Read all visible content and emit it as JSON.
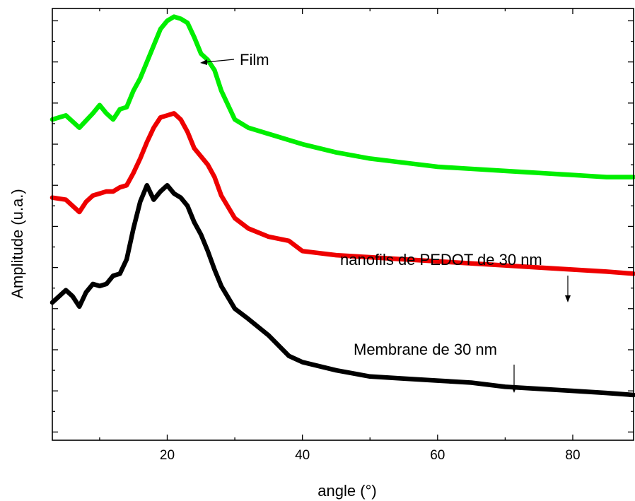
{
  "chart_data": {
    "type": "line",
    "xlabel": "angle (°)",
    "ylabel": "Amplitude (u.a.)",
    "xlim": [
      3,
      89
    ],
    "ylim": [
      -0.2,
      10.3
    ],
    "xticks": [
      20,
      40,
      60,
      80
    ],
    "yticks_labeled": false,
    "grid": false,
    "legend": "none",
    "series": [
      {
        "color": "#00ee00",
        "x": [
          3,
          5,
          7,
          9,
          10,
          11,
          12,
          13,
          14,
          15,
          16,
          17,
          18,
          19,
          20,
          21,
          22,
          23,
          24,
          25,
          26,
          27,
          28,
          30,
          32,
          35,
          40,
          45,
          50,
          55,
          60,
          65,
          70,
          75,
          80,
          85,
          89
        ],
        "y": [
          7.6,
          7.7,
          7.4,
          7.75,
          7.95,
          7.75,
          7.6,
          7.85,
          7.9,
          8.3,
          8.6,
          9.0,
          9.4,
          9.8,
          10.0,
          10.1,
          10.05,
          9.95,
          9.6,
          9.2,
          9.05,
          8.8,
          8.3,
          7.6,
          7.4,
          7.25,
          7.0,
          6.8,
          6.65,
          6.55,
          6.45,
          6.4,
          6.35,
          6.3,
          6.25,
          6.2,
          6.2
        ]
      },
      {
        "color": "#ee0000",
        "x": [
          3,
          5,
          7,
          8,
          9,
          10,
          11,
          12,
          13,
          14,
          15,
          16,
          17,
          18,
          19,
          20,
          21,
          22,
          23,
          24,
          25,
          26,
          27,
          28,
          30,
          32,
          35,
          38,
          40,
          45,
          50,
          55,
          60,
          65,
          70,
          75,
          80,
          85,
          89
        ],
        "y": [
          5.7,
          5.65,
          5.35,
          5.6,
          5.75,
          5.8,
          5.85,
          5.85,
          5.95,
          6.0,
          6.3,
          6.65,
          7.05,
          7.4,
          7.65,
          7.7,
          7.75,
          7.6,
          7.3,
          6.9,
          6.7,
          6.5,
          6.2,
          5.75,
          5.2,
          4.95,
          4.75,
          4.65,
          4.4,
          4.3,
          4.25,
          4.2,
          4.15,
          4.1,
          4.05,
          4.0,
          3.95,
          3.9,
          3.85
        ]
      },
      {
        "color": "#000000",
        "x": [
          3,
          5,
          6,
          7,
          8,
          9,
          10,
          11,
          12,
          13,
          14,
          15,
          16,
          17,
          18,
          19,
          20,
          21,
          22,
          23,
          24,
          25,
          26,
          27,
          28,
          30,
          32,
          35,
          38,
          40,
          45,
          50,
          55,
          60,
          65,
          70,
          75,
          80,
          85,
          89
        ],
        "y": [
          3.15,
          3.45,
          3.3,
          3.05,
          3.4,
          3.6,
          3.55,
          3.6,
          3.8,
          3.85,
          4.2,
          4.95,
          5.6,
          6.0,
          5.65,
          5.85,
          6.0,
          5.8,
          5.7,
          5.5,
          5.1,
          4.8,
          4.4,
          3.95,
          3.55,
          3.0,
          2.75,
          2.35,
          1.85,
          1.7,
          1.5,
          1.35,
          1.3,
          1.25,
          1.2,
          1.1,
          1.05,
          1.0,
          0.95,
          0.9
        ]
      }
    ],
    "annotations": [
      {
        "text": "Film"
      },
      {
        "text": "nanofils de PEDOT de 30 nm"
      },
      {
        "text": "Membrane de 30 nm"
      }
    ]
  }
}
